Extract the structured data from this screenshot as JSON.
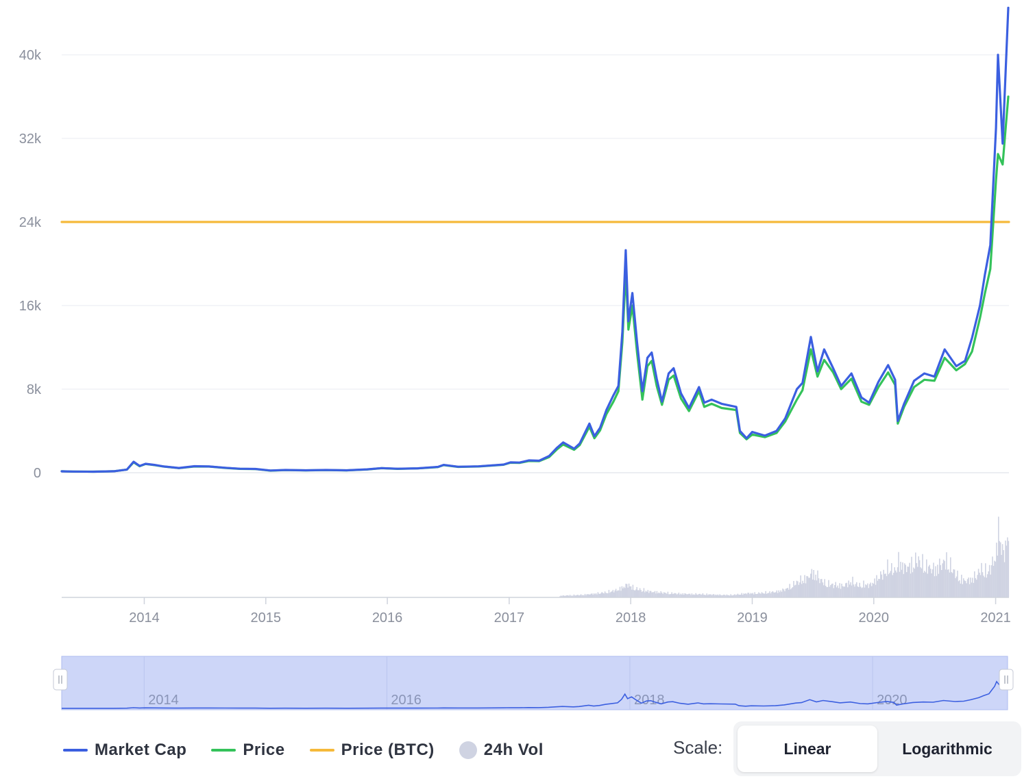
{
  "chart_data": {
    "type": "line",
    "y_ticks": [
      "0",
      "8k",
      "16k",
      "24k",
      "32k",
      "40k"
    ],
    "x_ticks": [
      "2014",
      "2015",
      "2016",
      "2017",
      "2018",
      "2019",
      "2020",
      "2021"
    ],
    "navigator_ticks": [
      "2014",
      "2016",
      "2018",
      "2020"
    ],
    "ylim": [
      0,
      45000
    ],
    "xlim": [
      "2013-04-28",
      "2021-02-10"
    ],
    "grid": true,
    "legend_position": "bottom-left",
    "series": [
      {
        "name": "Market Cap",
        "color": "#3b5fe0",
        "points": [
          [
            "2013-04-28",
            130
          ],
          [
            "2013-06-01",
            110
          ],
          [
            "2013-08-01",
            100
          ],
          [
            "2013-10-01",
            140
          ],
          [
            "2013-11-10",
            300
          ],
          [
            "2013-11-30",
            1050
          ],
          [
            "2013-12-18",
            650
          ],
          [
            "2014-01-05",
            850
          ],
          [
            "2014-02-01",
            750
          ],
          [
            "2014-03-01",
            600
          ],
          [
            "2014-04-15",
            450
          ],
          [
            "2014-06-01",
            620
          ],
          [
            "2014-07-15",
            600
          ],
          [
            "2014-09-01",
            470
          ],
          [
            "2014-10-15",
            380
          ],
          [
            "2014-12-01",
            360
          ],
          [
            "2015-01-15",
            210
          ],
          [
            "2015-03-01",
            260
          ],
          [
            "2015-05-01",
            230
          ],
          [
            "2015-07-01",
            260
          ],
          [
            "2015-09-01",
            230
          ],
          [
            "2015-11-01",
            320
          ],
          [
            "2015-12-15",
            440
          ],
          [
            "2016-02-01",
            380
          ],
          [
            "2016-04-01",
            420
          ],
          [
            "2016-06-01",
            560
          ],
          [
            "2016-06-18",
            750
          ],
          [
            "2016-08-01",
            570
          ],
          [
            "2016-10-01",
            610
          ],
          [
            "2016-12-15",
            780
          ],
          [
            "2017-01-05",
            990
          ],
          [
            "2017-02-01",
            970
          ],
          [
            "2017-03-01",
            1180
          ],
          [
            "2017-04-01",
            1150
          ],
          [
            "2017-05-01",
            1600
          ],
          [
            "2017-05-25",
            2400
          ],
          [
            "2017-06-12",
            2900
          ],
          [
            "2017-07-15",
            2300
          ],
          [
            "2017-08-01",
            2800
          ],
          [
            "2017-08-30",
            4700
          ],
          [
            "2017-09-14",
            3500
          ],
          [
            "2017-10-01",
            4300
          ],
          [
            "2017-10-20",
            6000
          ],
          [
            "2017-11-10",
            7400
          ],
          [
            "2017-11-25",
            8300
          ],
          [
            "2017-12-07",
            13500
          ],
          [
            "2017-12-17",
            21300
          ],
          [
            "2017-12-25",
            14500
          ],
          [
            "2018-01-06",
            17200
          ],
          [
            "2018-01-20",
            12500
          ],
          [
            "2018-02-05",
            7800
          ],
          [
            "2018-02-20",
            11000
          ],
          [
            "2018-03-05",
            11500
          ],
          [
            "2018-03-20",
            9000
          ],
          [
            "2018-04-05",
            6800
          ],
          [
            "2018-04-25",
            9500
          ],
          [
            "2018-05-10",
            10000
          ],
          [
            "2018-06-01",
            7600
          ],
          [
            "2018-06-25",
            6200
          ],
          [
            "2018-07-25",
            8200
          ],
          [
            "2018-08-10",
            6700
          ],
          [
            "2018-09-01",
            7000
          ],
          [
            "2018-10-01",
            6600
          ],
          [
            "2018-11-14",
            6300
          ],
          [
            "2018-11-25",
            4000
          ],
          [
            "2018-12-15",
            3300
          ],
          [
            "2019-01-01",
            3900
          ],
          [
            "2019-02-08",
            3550
          ],
          [
            "2019-03-15",
            4000
          ],
          [
            "2019-04-10",
            5200
          ],
          [
            "2019-05-15",
            8000
          ],
          [
            "2019-06-01",
            8600
          ],
          [
            "2019-06-26",
            13000
          ],
          [
            "2019-07-16",
            9700
          ],
          [
            "2019-08-05",
            11800
          ],
          [
            "2019-09-01",
            10000
          ],
          [
            "2019-09-25",
            8300
          ],
          [
            "2019-10-26",
            9500
          ],
          [
            "2019-11-25",
            7200
          ],
          [
            "2019-12-18",
            6700
          ],
          [
            "2020-01-15",
            8700
          ],
          [
            "2020-02-13",
            10300
          ],
          [
            "2020-03-05",
            8900
          ],
          [
            "2020-03-13",
            4950
          ],
          [
            "2020-04-01",
            6600
          ],
          [
            "2020-05-01",
            8800
          ],
          [
            "2020-06-01",
            9500
          ],
          [
            "2020-07-01",
            9200
          ],
          [
            "2020-08-01",
            11800
          ],
          [
            "2020-09-05",
            10200
          ],
          [
            "2020-10-01",
            10700
          ],
          [
            "2020-10-22",
            12900
          ],
          [
            "2020-11-15",
            16000
          ],
          [
            "2020-11-30",
            19000
          ],
          [
            "2020-12-16",
            21800
          ],
          [
            "2021-01-02",
            33000
          ],
          [
            "2021-01-08",
            40000
          ],
          [
            "2021-01-22",
            31500
          ],
          [
            "2021-02-08",
            44500
          ]
        ]
      },
      {
        "name": "Price",
        "color": "#34c25a",
        "points": [
          [
            "2013-04-28",
            135
          ],
          [
            "2013-06-01",
            110
          ],
          [
            "2013-08-01",
            100
          ],
          [
            "2013-10-01",
            140
          ],
          [
            "2013-11-10",
            300
          ],
          [
            "2013-11-30",
            1000
          ],
          [
            "2013-12-18",
            620
          ],
          [
            "2014-01-05",
            830
          ],
          [
            "2014-02-01",
            730
          ],
          [
            "2014-03-01",
            590
          ],
          [
            "2014-04-15",
            440
          ],
          [
            "2014-06-01",
            600
          ],
          [
            "2014-07-15",
            590
          ],
          [
            "2014-09-01",
            460
          ],
          [
            "2014-10-15",
            370
          ],
          [
            "2014-12-01",
            350
          ],
          [
            "2015-01-15",
            200
          ],
          [
            "2015-03-01",
            250
          ],
          [
            "2015-05-01",
            225
          ],
          [
            "2015-07-01",
            250
          ],
          [
            "2015-09-01",
            225
          ],
          [
            "2015-11-01",
            310
          ],
          [
            "2015-12-15",
            430
          ],
          [
            "2016-02-01",
            370
          ],
          [
            "2016-04-01",
            410
          ],
          [
            "2016-06-01",
            540
          ],
          [
            "2016-06-18",
            730
          ],
          [
            "2016-08-01",
            560
          ],
          [
            "2016-10-01",
            600
          ],
          [
            "2016-12-15",
            760
          ],
          [
            "2017-01-05",
            960
          ],
          [
            "2017-02-01",
            940
          ],
          [
            "2017-03-01",
            1120
          ],
          [
            "2017-04-01",
            1100
          ],
          [
            "2017-05-01",
            1500
          ],
          [
            "2017-05-25",
            2250
          ],
          [
            "2017-06-12",
            2700
          ],
          [
            "2017-07-15",
            2200
          ],
          [
            "2017-08-01",
            2650
          ],
          [
            "2017-08-30",
            4400
          ],
          [
            "2017-09-14",
            3300
          ],
          [
            "2017-10-01",
            4050
          ],
          [
            "2017-10-20",
            5600
          ],
          [
            "2017-11-10",
            6800
          ],
          [
            "2017-11-25",
            7800
          ],
          [
            "2017-12-07",
            12500
          ],
          [
            "2017-12-17",
            19300
          ],
          [
            "2017-12-25",
            13700
          ],
          [
            "2018-01-06",
            16000
          ],
          [
            "2018-01-20",
            11500
          ],
          [
            "2018-02-05",
            7000
          ],
          [
            "2018-02-20",
            10200
          ],
          [
            "2018-03-05",
            10700
          ],
          [
            "2018-03-20",
            8300
          ],
          [
            "2018-04-05",
            6500
          ],
          [
            "2018-04-25",
            8900
          ],
          [
            "2018-05-10",
            9300
          ],
          [
            "2018-06-01",
            7100
          ],
          [
            "2018-06-25",
            5900
          ],
          [
            "2018-07-25",
            7800
          ],
          [
            "2018-08-10",
            6300
          ],
          [
            "2018-09-01",
            6600
          ],
          [
            "2018-10-01",
            6200
          ],
          [
            "2018-11-14",
            6000
          ],
          [
            "2018-11-25",
            3800
          ],
          [
            "2018-12-15",
            3200
          ],
          [
            "2019-01-01",
            3650
          ],
          [
            "2019-02-08",
            3400
          ],
          [
            "2019-03-15",
            3800
          ],
          [
            "2019-04-10",
            4900
          ],
          [
            "2019-05-15",
            7000
          ],
          [
            "2019-06-01",
            7900
          ],
          [
            "2019-06-26",
            11800
          ],
          [
            "2019-07-16",
            9200
          ],
          [
            "2019-08-05",
            10800
          ],
          [
            "2019-09-01",
            9600
          ],
          [
            "2019-09-25",
            8000
          ],
          [
            "2019-10-26",
            9000
          ],
          [
            "2019-11-25",
            6800
          ],
          [
            "2019-12-18",
            6500
          ],
          [
            "2020-01-15",
            8200
          ],
          [
            "2020-02-13",
            9600
          ],
          [
            "2020-03-05",
            8400
          ],
          [
            "2020-03-13",
            4700
          ],
          [
            "2020-04-01",
            6300
          ],
          [
            "2020-05-01",
            8200
          ],
          [
            "2020-06-01",
            8900
          ],
          [
            "2020-07-01",
            8800
          ],
          [
            "2020-08-01",
            11000
          ],
          [
            "2020-09-05",
            9800
          ],
          [
            "2020-10-01",
            10400
          ],
          [
            "2020-10-22",
            11600
          ],
          [
            "2020-11-15",
            14800
          ],
          [
            "2020-11-30",
            17200
          ],
          [
            "2020-12-16",
            19500
          ],
          [
            "2021-01-02",
            28000
          ],
          [
            "2021-01-08",
            30500
          ],
          [
            "2021-01-22",
            29500
          ],
          [
            "2021-02-08",
            36000
          ]
        ]
      },
      {
        "name": "Price (BTC)",
        "color": "#f5b93a",
        "points": [
          [
            "2013-04-28",
            24000
          ],
          [
            "2021-02-10",
            24000
          ]
        ]
      }
    ],
    "volume": {
      "name": "24h Vol",
      "color": "#cfd3e2",
      "points": [
        [
          "2017-06-01",
          2
        ],
        [
          "2017-08-01",
          3
        ],
        [
          "2017-09-01",
          4
        ],
        [
          "2017-10-15",
          6
        ],
        [
          "2017-11-20",
          9
        ],
        [
          "2017-12-05",
          12
        ],
        [
          "2017-12-15",
          14
        ],
        [
          "2017-12-22",
          16
        ],
        [
          "2018-01-05",
          12
        ],
        [
          "2018-01-20",
          10
        ],
        [
          "2018-02-05",
          9
        ],
        [
          "2018-03-01",
          7
        ],
        [
          "2018-04-01",
          6
        ],
        [
          "2018-05-01",
          5
        ],
        [
          "2018-06-01",
          4.5
        ],
        [
          "2018-07-01",
          4
        ],
        [
          "2018-08-01",
          4
        ],
        [
          "2018-09-01",
          3.5
        ],
        [
          "2018-10-01",
          3
        ],
        [
          "2018-11-01",
          3
        ],
        [
          "2018-11-25",
          4
        ],
        [
          "2018-12-15",
          5
        ],
        [
          "2019-01-15",
          5
        ],
        [
          "2019-02-15",
          6
        ],
        [
          "2019-03-15",
          7
        ],
        [
          "2019-04-10",
          10
        ],
        [
          "2019-05-01",
          15
        ],
        [
          "2019-05-20",
          20
        ],
        [
          "2019-06-15",
          24
        ],
        [
          "2019-06-28",
          30
        ],
        [
          "2019-07-15",
          26
        ],
        [
          "2019-08-01",
          18
        ],
        [
          "2019-08-20",
          16
        ],
        [
          "2019-09-10",
          15
        ],
        [
          "2019-10-01",
          14
        ],
        [
          "2019-10-26",
          20
        ],
        [
          "2019-11-15",
          14
        ],
        [
          "2019-12-01",
          16
        ],
        [
          "2019-12-20",
          15
        ],
        [
          "2020-01-15",
          25
        ],
        [
          "2020-02-01",
          30
        ],
        [
          "2020-02-15",
          38
        ],
        [
          "2020-03-01",
          30
        ],
        [
          "2020-03-13",
          44
        ],
        [
          "2020-04-01",
          36
        ],
        [
          "2020-04-15",
          38
        ],
        [
          "2020-05-01",
          42
        ],
        [
          "2020-05-10",
          46
        ],
        [
          "2020-06-01",
          38
        ],
        [
          "2020-06-15",
          36
        ],
        [
          "2020-07-01",
          34
        ],
        [
          "2020-07-25",
          42
        ],
        [
          "2020-08-05",
          44
        ],
        [
          "2020-08-20",
          36
        ],
        [
          "2020-09-10",
          24
        ],
        [
          "2020-10-01",
          20
        ],
        [
          "2020-10-20",
          22
        ],
        [
          "2020-11-05",
          28
        ],
        [
          "2020-11-20",
          35
        ],
        [
          "2020-12-05",
          30
        ],
        [
          "2020-12-20",
          40
        ],
        [
          "2021-01-02",
          55
        ],
        [
          "2021-01-08",
          85
        ],
        [
          "2021-01-15",
          65
        ],
        [
          "2021-01-22",
          52
        ],
        [
          "2021-01-29",
          62
        ],
        [
          "2021-02-05",
          75
        ],
        [
          "2021-02-08",
          100
        ]
      ]
    }
  },
  "legend": {
    "market_cap": "Market Cap",
    "price": "Price",
    "price_btc": "Price (BTC)",
    "vol": "24h Vol"
  },
  "colors": {
    "market_cap": "#3b5fe0",
    "price": "#34c25a",
    "price_btc": "#f5b93a",
    "vol": "#cfd3e2"
  },
  "scale": {
    "label": "Scale:",
    "options": [
      "Linear",
      "Logarithmic"
    ],
    "selected": "Linear"
  }
}
